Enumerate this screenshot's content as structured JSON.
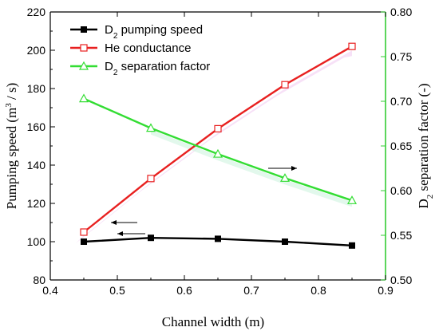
{
  "chart_data": {
    "type": "line",
    "x": [
      0.45,
      0.55,
      0.65,
      0.75,
      0.85
    ],
    "xlabel": "Channel width (m)",
    "xlim": [
      0.4,
      0.9
    ],
    "xticks": [
      "0.4",
      "0.5",
      "0.6",
      "0.7",
      "0.8",
      "0.9"
    ],
    "ylabel_prefix": "Pumping speed (m",
    "ylabel_sup": "3",
    "ylabel_suffix": " / s)",
    "ylim": [
      80,
      220
    ],
    "yticks": [
      "80",
      "100",
      "120",
      "140",
      "160",
      "180",
      "200",
      "220"
    ],
    "y2label_prefix": "D",
    "y2label_sub": "2",
    "y2label_suffix": " separation factor (-)",
    "y2lim": [
      0.5,
      0.8
    ],
    "y2ticks": [
      "0.50",
      "0.55",
      "0.60",
      "0.65",
      "0.70",
      "0.75",
      "0.80"
    ],
    "legend_position": "top-left",
    "series": [
      {
        "name_prefix": "D",
        "name_sub": "2",
        "name_suffix": " pumping speed",
        "axis": "left",
        "values": [
          100,
          102,
          101.5,
          100,
          98
        ],
        "color": "#000000",
        "marker": "filled-square"
      },
      {
        "name_prefix": "He conductance",
        "name_sub": "",
        "name_suffix": "",
        "axis": "left",
        "values": [
          105,
          133,
          159,
          182,
          202
        ],
        "color": "#e82020",
        "marker": "open-square"
      },
      {
        "name_prefix": "D",
        "name_sub": "2",
        "name_suffix": " separation factor",
        "axis": "right",
        "values": [
          0.703,
          0.67,
          0.641,
          0.614,
          0.589
        ],
        "color": "#33dd33",
        "marker": "open-triangle"
      }
    ]
  }
}
